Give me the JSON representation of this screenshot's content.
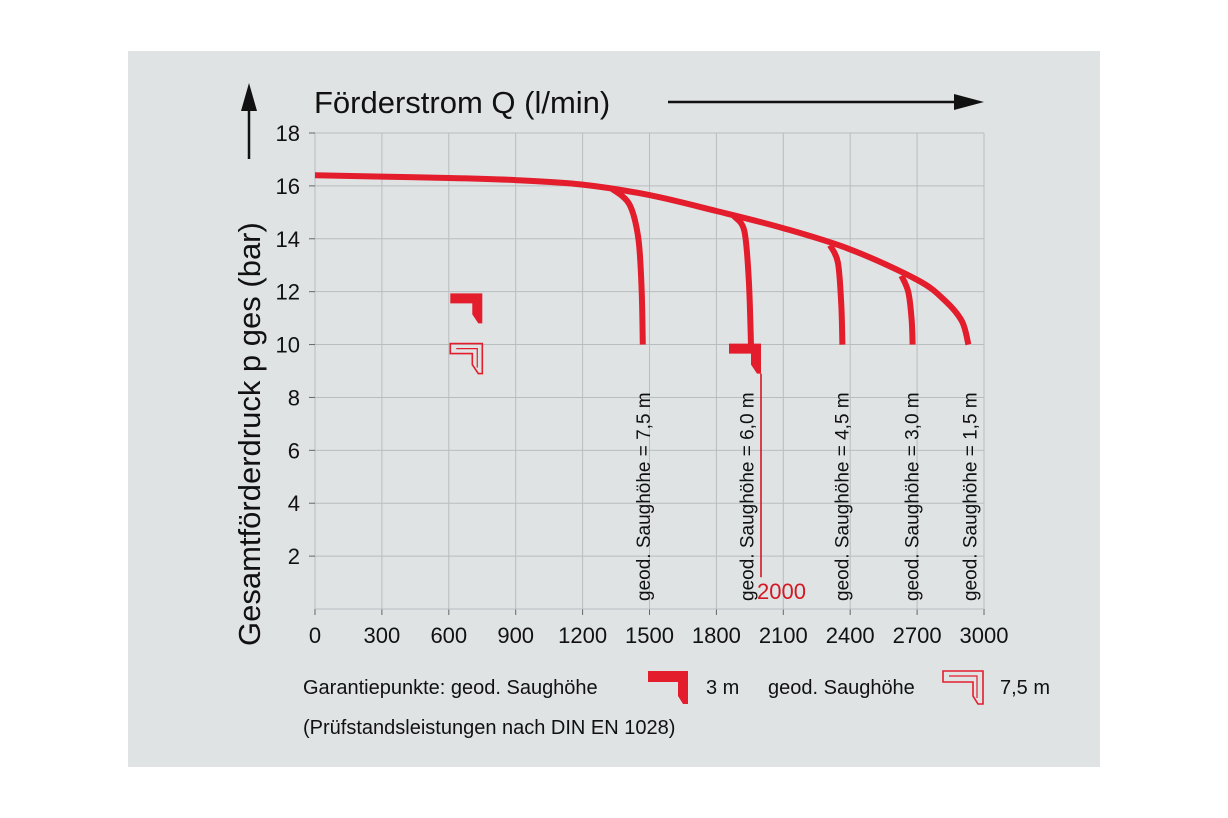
{
  "chart_data": {
    "type": "line",
    "xlabel": "Förderstrom Q (l/min)",
    "ylabel": "Gesamtförderdruck p ges (bar)",
    "xlim": [
      0,
      3000
    ],
    "ylim": [
      0,
      18
    ],
    "xticks": [
      0,
      300,
      600,
      900,
      1200,
      1500,
      1800,
      2100,
      2400,
      2700,
      3000
    ],
    "yticks": [
      2,
      4,
      6,
      8,
      10,
      12,
      14,
      16,
      18
    ],
    "grid": true,
    "main_curve": [
      [
        0,
        16.4
      ],
      [
        300,
        16.35
      ],
      [
        600,
        16.3
      ],
      [
        900,
        16.22
      ],
      [
        1200,
        16.05
      ],
      [
        1500,
        15.65
      ],
      [
        1800,
        15.05
      ],
      [
        2100,
        14.4
      ],
      [
        2400,
        13.6
      ],
      [
        2700,
        12.45
      ],
      [
        2820,
        11.7
      ],
      [
        2900,
        10.9
      ],
      [
        2930,
        10.0
      ]
    ],
    "series": [
      {
        "name": "geod. Saughöhe = 7,5 m",
        "points": [
          [
            1330,
            15.9
          ],
          [
            1410,
            15.3
          ],
          [
            1450,
            14.0
          ],
          [
            1465,
            12.0
          ],
          [
            1470,
            10.0
          ]
        ]
      },
      {
        "name": "geod. Saughöhe = 6,0 m",
        "points": [
          [
            1880,
            14.85
          ],
          [
            1925,
            14.3
          ],
          [
            1945,
            12.5
          ],
          [
            1955,
            10.0
          ]
        ]
      },
      {
        "name": "geod. Saughöhe = 4,5 m",
        "points": [
          [
            2310,
            13.75
          ],
          [
            2345,
            13.1
          ],
          [
            2360,
            11.5
          ],
          [
            2365,
            10.0
          ]
        ]
      },
      {
        "name": "geod. Saughöhe = 3,0 m",
        "points": [
          [
            2630,
            12.6
          ],
          [
            2660,
            12.0
          ],
          [
            2675,
            11.0
          ],
          [
            2680,
            10.0
          ]
        ]
      },
      {
        "name": "geod. Saughöhe = 1,5 m",
        "points": [
          [
            2930,
            10.0
          ]
        ]
      }
    ],
    "suction_labels": [
      {
        "text": "geod. Saughöhe = 7,5 m",
        "x": 1470
      },
      {
        "text": "geod. Saughöhe = 6,0 m",
        "x": 1935
      },
      {
        "text": "geod. Saughöhe = 4,5 m",
        "x": 2360
      },
      {
        "text": "geod. Saughöhe = 3,0 m",
        "x": 2675
      },
      {
        "text": "geod. Saughöhe = 1,5 m",
        "x": 2935
      }
    ],
    "guarantee_points": [
      {
        "type": "filled",
        "x": 750,
        "y": 10.8
      },
      {
        "type": "outline",
        "x": 750,
        "y": 8.9
      },
      {
        "type": "filled",
        "x": 2000,
        "y": 8.9
      }
    ],
    "marker_line": {
      "x": 2000,
      "y_top": 8.9,
      "y_bottom": 1.2
    },
    "marker_label": "2000",
    "colors": {
      "curve": "#e31d2b",
      "marker": "#d31823",
      "background": "#dfe3e4",
      "grid": "#b9bdc0"
    }
  },
  "legend": {
    "prefix": "Garantiepunkte: geod. Saughöhe",
    "value1": "3 m",
    "middle": "geod. Saughöhe",
    "value2": "7,5 m",
    "note": "(Prüfstandsleistungen nach DIN EN 1028)"
  }
}
